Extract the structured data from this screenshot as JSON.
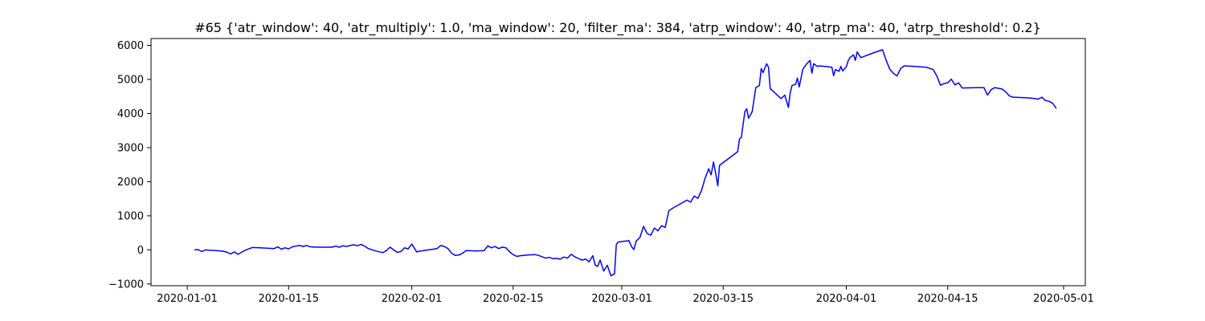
{
  "chart_data": {
    "type": "line",
    "title": "#65 {'atr_window': 40, 'atr_multiply': 1.0, 'ma_window': 20, 'filter_ma': 384, 'atrp_window': 40, 'atrp_ma': 40, 'atrp_threshold': 0.2}",
    "xlabel": "",
    "ylabel": "",
    "grid": false,
    "legend": "none",
    "line_color": "#0000ff",
    "xlim": [
      "2019-12-27",
      "2020-05-04"
    ],
    "ylim": [
      -1050,
      6200
    ],
    "x_ticks": [
      {
        "value": "2020-01-01",
        "label": "2020-01-01"
      },
      {
        "value": "2020-01-15",
        "label": "2020-01-15"
      },
      {
        "value": "2020-02-01",
        "label": "2020-02-01"
      },
      {
        "value": "2020-02-15",
        "label": "2020-02-15"
      },
      {
        "value": "2020-03-01",
        "label": "2020-03-01"
      },
      {
        "value": "2020-03-15",
        "label": "2020-03-15"
      },
      {
        "value": "2020-04-01",
        "label": "2020-04-01"
      },
      {
        "value": "2020-04-15",
        "label": "2020-04-15"
      },
      {
        "value": "2020-05-01",
        "label": "2020-05-01"
      }
    ],
    "y_ticks": [
      {
        "value": -1000,
        "label": "−1000"
      },
      {
        "value": 0,
        "label": "0"
      },
      {
        "value": 1000,
        "label": "1000"
      },
      {
        "value": 2000,
        "label": "2000"
      },
      {
        "value": 3000,
        "label": "3000"
      },
      {
        "value": 4000,
        "label": "4000"
      },
      {
        "value": 5000,
        "label": "5000"
      },
      {
        "value": 6000,
        "label": "6000"
      }
    ],
    "series": [
      {
        "points": [
          [
            "2020-01-02",
            0
          ],
          [
            "2020-01-02 12:00",
            10
          ],
          [
            "2020-01-03",
            -50
          ],
          [
            "2020-01-03 12:00",
            0
          ],
          [
            "2020-01-04",
            -10
          ],
          [
            "2020-01-05",
            -20
          ],
          [
            "2020-01-06",
            -40
          ],
          [
            "2020-01-06 12:00",
            -70
          ],
          [
            "2020-01-07",
            -120
          ],
          [
            "2020-01-07 12:00",
            -60
          ],
          [
            "2020-01-08",
            -130
          ],
          [
            "2020-01-08 12:00",
            -70
          ],
          [
            "2020-01-09",
            -10
          ],
          [
            "2020-01-09 12:00",
            30
          ],
          [
            "2020-01-10",
            70
          ],
          [
            "2020-01-11",
            60
          ],
          [
            "2020-01-12",
            50
          ],
          [
            "2020-01-13",
            40
          ],
          [
            "2020-01-13 12:00",
            90
          ],
          [
            "2020-01-14",
            20
          ],
          [
            "2020-01-14 12:00",
            60
          ],
          [
            "2020-01-15",
            30
          ],
          [
            "2020-01-15 12:00",
            90
          ],
          [
            "2020-01-16",
            110
          ],
          [
            "2020-01-16 12:00",
            130
          ],
          [
            "2020-01-17",
            100
          ],
          [
            "2020-01-17 12:00",
            130
          ],
          [
            "2020-01-18",
            90
          ],
          [
            "2020-01-19",
            80
          ],
          [
            "2020-01-20",
            80
          ],
          [
            "2020-01-21",
            80
          ],
          [
            "2020-01-21 12:00",
            110
          ],
          [
            "2020-01-22",
            80
          ],
          [
            "2020-01-22 12:00",
            120
          ],
          [
            "2020-01-23",
            100
          ],
          [
            "2020-01-23 12:00",
            130
          ],
          [
            "2020-01-24",
            150
          ],
          [
            "2020-01-24 12:00",
            120
          ],
          [
            "2020-01-25",
            160
          ],
          [
            "2020-01-25 12:00",
            110
          ],
          [
            "2020-01-26",
            40
          ],
          [
            "2020-01-27",
            -30
          ],
          [
            "2020-01-28",
            -80
          ],
          [
            "2020-01-28 12:00",
            -20
          ],
          [
            "2020-01-29",
            80
          ],
          [
            "2020-01-29 12:00",
            0
          ],
          [
            "2020-01-30",
            -70
          ],
          [
            "2020-01-30 12:00",
            -50
          ],
          [
            "2020-01-31",
            60
          ],
          [
            "2020-01-31 12:00",
            30
          ],
          [
            "2020-02-01",
            170
          ],
          [
            "2020-02-01 08:00",
            60
          ],
          [
            "2020-02-01 16:00",
            -60
          ],
          [
            "2020-02-02",
            -40
          ],
          [
            "2020-02-03",
            -10
          ],
          [
            "2020-02-04",
            20
          ],
          [
            "2020-02-04 12:00",
            40
          ],
          [
            "2020-02-05",
            130
          ],
          [
            "2020-02-05 12:00",
            100
          ],
          [
            "2020-02-06",
            40
          ],
          [
            "2020-02-06 12:00",
            -100
          ],
          [
            "2020-02-07",
            -160
          ],
          [
            "2020-02-07 12:00",
            -150
          ],
          [
            "2020-02-08",
            -100
          ],
          [
            "2020-02-08 12:00",
            -20
          ],
          [
            "2020-02-10",
            -30
          ],
          [
            "2020-02-11",
            -20
          ],
          [
            "2020-02-11 12:00",
            120
          ],
          [
            "2020-02-12",
            60
          ],
          [
            "2020-02-12 12:00",
            100
          ],
          [
            "2020-02-13",
            40
          ],
          [
            "2020-02-13 12:00",
            80
          ],
          [
            "2020-02-14",
            60
          ],
          [
            "2020-02-14 12:00",
            -60
          ],
          [
            "2020-02-15",
            -140
          ],
          [
            "2020-02-15 12:00",
            -190
          ],
          [
            "2020-02-16",
            -170
          ],
          [
            "2020-02-17",
            -150
          ],
          [
            "2020-02-18",
            -140
          ],
          [
            "2020-02-18 12:00",
            -160
          ],
          [
            "2020-02-19",
            -200
          ],
          [
            "2020-02-19 12:00",
            -240
          ],
          [
            "2020-02-20",
            -220
          ],
          [
            "2020-02-20 12:00",
            -260
          ],
          [
            "2020-02-21",
            -250
          ],
          [
            "2020-02-21 12:00",
            -270
          ],
          [
            "2020-02-22",
            -210
          ],
          [
            "2020-02-22 12:00",
            -240
          ],
          [
            "2020-02-23",
            -130
          ],
          [
            "2020-02-23 12:00",
            -200
          ],
          [
            "2020-02-24",
            -250
          ],
          [
            "2020-02-24 12:00",
            -300
          ],
          [
            "2020-02-25",
            -270
          ],
          [
            "2020-02-25 12:00",
            -350
          ],
          [
            "2020-02-26",
            -170
          ],
          [
            "2020-02-26 08:00",
            -450
          ],
          [
            "2020-02-26 16:00",
            -480
          ],
          [
            "2020-02-27",
            -300
          ],
          [
            "2020-02-27 12:00",
            -620
          ],
          [
            "2020-02-28",
            -450
          ],
          [
            "2020-02-28 12:00",
            -760
          ],
          [
            "2020-02-29",
            -700
          ],
          [
            "2020-02-29 06:00",
            160
          ],
          [
            "2020-02-29 12:00",
            230
          ],
          [
            "2020-03-02",
            270
          ],
          [
            "2020-03-02 08:00",
            100
          ],
          [
            "2020-03-02 16:00",
            10
          ],
          [
            "2020-03-03",
            260
          ],
          [
            "2020-03-03 12:00",
            360
          ],
          [
            "2020-03-04",
            690
          ],
          [
            "2020-03-04 12:00",
            480
          ],
          [
            "2020-03-05",
            430
          ],
          [
            "2020-03-05 12:00",
            640
          ],
          [
            "2020-03-06",
            560
          ],
          [
            "2020-03-06 12:00",
            710
          ],
          [
            "2020-03-07",
            660
          ],
          [
            "2020-03-07 12:00",
            1150
          ],
          [
            "2020-03-08",
            1220
          ],
          [
            "2020-03-09",
            1340
          ],
          [
            "2020-03-10",
            1460
          ],
          [
            "2020-03-10 12:00",
            1400
          ],
          [
            "2020-03-11",
            1580
          ],
          [
            "2020-03-11 12:00",
            1510
          ],
          [
            "2020-03-12",
            1740
          ],
          [
            "2020-03-12 12:00",
            2100
          ],
          [
            "2020-03-13",
            2380
          ],
          [
            "2020-03-13 08:00",
            2200
          ],
          [
            "2020-03-13 16:00",
            2580
          ],
          [
            "2020-03-14",
            2200
          ],
          [
            "2020-03-14 06:00",
            1880
          ],
          [
            "2020-03-14 12:00",
            2480
          ],
          [
            "2020-03-17",
            2880
          ],
          [
            "2020-03-17 06:00",
            3250
          ],
          [
            "2020-03-17 12:00",
            3300
          ],
          [
            "2020-03-17 18:00",
            3680
          ],
          [
            "2020-03-18",
            4060
          ],
          [
            "2020-03-18 06:00",
            4140
          ],
          [
            "2020-03-18 12:00",
            3860
          ],
          [
            "2020-03-19",
            4050
          ],
          [
            "2020-03-19 12:00",
            4760
          ],
          [
            "2020-03-20",
            4820
          ],
          [
            "2020-03-20 06:00",
            5320
          ],
          [
            "2020-03-20 12:00",
            5200
          ],
          [
            "2020-03-21",
            5460
          ],
          [
            "2020-03-21 06:00",
            5360
          ],
          [
            "2020-03-21 12:00",
            4730
          ],
          [
            "2020-03-23",
            4440
          ],
          [
            "2020-03-23 12:00",
            4540
          ],
          [
            "2020-03-24",
            4180
          ],
          [
            "2020-03-24 06:00",
            4600
          ],
          [
            "2020-03-24 12:00",
            4820
          ],
          [
            "2020-03-25",
            4860
          ],
          [
            "2020-03-25 06:00",
            5040
          ],
          [
            "2020-03-25 12:00",
            4780
          ],
          [
            "2020-03-26",
            5300
          ],
          [
            "2020-03-26 12:00",
            5450
          ],
          [
            "2020-03-27",
            5560
          ],
          [
            "2020-03-27 06:00",
            5180
          ],
          [
            "2020-03-27 12:00",
            5460
          ],
          [
            "2020-03-28",
            5380
          ],
          [
            "2020-03-28 06:00",
            5400
          ],
          [
            "2020-03-30",
            5360
          ],
          [
            "2020-03-30 06:00",
            5110
          ],
          [
            "2020-03-30 12:00",
            5290
          ],
          [
            "2020-03-31",
            5240
          ],
          [
            "2020-03-31 06:00",
            5380
          ],
          [
            "2020-03-31 12:00",
            5250
          ],
          [
            "2020-04-01",
            5370
          ],
          [
            "2020-04-01 06:00",
            5540
          ],
          [
            "2020-04-01 12:00",
            5640
          ],
          [
            "2020-04-02",
            5720
          ],
          [
            "2020-04-02 06:00",
            5560
          ],
          [
            "2020-04-02 12:00",
            5810
          ],
          [
            "2020-04-03",
            5640
          ],
          [
            "2020-04-05",
            5800
          ],
          [
            "2020-04-06",
            5870
          ],
          [
            "2020-04-06 12:00",
            5560
          ],
          [
            "2020-04-07",
            5300
          ],
          [
            "2020-04-07 12:00",
            5180
          ],
          [
            "2020-04-08",
            5100
          ],
          [
            "2020-04-08 12:00",
            5320
          ],
          [
            "2020-04-09",
            5400
          ],
          [
            "2020-04-12",
            5360
          ],
          [
            "2020-04-13",
            5290
          ],
          [
            "2020-04-13 12:00",
            5100
          ],
          [
            "2020-04-14",
            4830
          ],
          [
            "2020-04-14 12:00",
            4880
          ],
          [
            "2020-04-15",
            4900
          ],
          [
            "2020-04-15 12:00",
            5010
          ],
          [
            "2020-04-16",
            4840
          ],
          [
            "2020-04-16 12:00",
            4900
          ],
          [
            "2020-04-17",
            4750
          ],
          [
            "2020-04-19",
            4760
          ],
          [
            "2020-04-20",
            4760
          ],
          [
            "2020-04-20 12:00",
            4540
          ],
          [
            "2020-04-21",
            4700
          ],
          [
            "2020-04-21 12:00",
            4760
          ],
          [
            "2020-04-22",
            4740
          ],
          [
            "2020-04-22 12:00",
            4720
          ],
          [
            "2020-04-23",
            4640
          ],
          [
            "2020-04-23 12:00",
            4520
          ],
          [
            "2020-04-24",
            4480
          ],
          [
            "2020-04-26",
            4460
          ],
          [
            "2020-04-27",
            4440
          ],
          [
            "2020-04-27 12:00",
            4420
          ],
          [
            "2020-04-28",
            4480
          ],
          [
            "2020-04-28 12:00",
            4380
          ],
          [
            "2020-04-29",
            4360
          ],
          [
            "2020-04-29 12:00",
            4300
          ],
          [
            "2020-04-30",
            4150
          ]
        ]
      }
    ]
  }
}
